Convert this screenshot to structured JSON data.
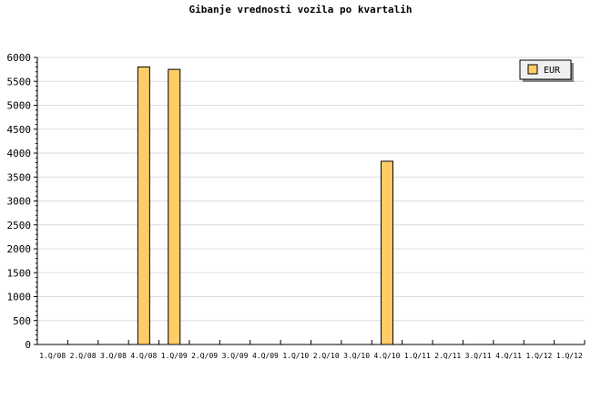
{
  "chart_data": {
    "type": "bar",
    "title": "Gibanje vrednosti vozila po kvartalih",
    "categories": [
      "1.Q/08",
      "2.Q/08",
      "3.Q/08",
      "4.Q/08",
      "1.Q/09",
      "2.Q/09",
      "3.Q/09",
      "4.Q/09",
      "1.Q/10",
      "2.Q/10",
      "3.Q/10",
      "4.Q/10",
      "1.Q/11",
      "2.Q/11",
      "3.Q/11",
      "4.Q/11",
      "1.Q/12",
      "1.Q/12"
    ],
    "series": [
      {
        "name": "EUR",
        "values": [
          0,
          0,
          0,
          5800,
          5750,
          0,
          0,
          0,
          0,
          0,
          0,
          3830,
          0,
          0,
          0,
          0,
          0,
          0
        ],
        "color": "#ffcc66"
      }
    ],
    "ylim": [
      0,
      6000
    ],
    "yticks": [
      0,
      500,
      1000,
      1500,
      2000,
      2500,
      3000,
      3500,
      4000,
      4500,
      5000,
      5500,
      6000
    ],
    "grid": true,
    "legend": "top-right"
  }
}
